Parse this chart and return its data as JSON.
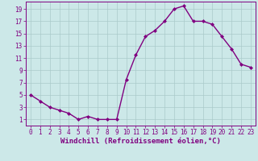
{
  "x": [
    0,
    1,
    2,
    3,
    4,
    5,
    6,
    7,
    8,
    9,
    10,
    11,
    12,
    13,
    14,
    15,
    16,
    17,
    18,
    19,
    20,
    21,
    22,
    23
  ],
  "y": [
    5,
    4,
    3,
    2.5,
    2,
    1,
    1.5,
    1,
    1,
    1,
    7.5,
    11.5,
    14.5,
    15.5,
    17,
    19,
    19.5,
    17,
    17,
    16.5,
    14.5,
    12.5,
    10,
    9.5
  ],
  "line_color": "#800080",
  "marker": "D",
  "marker_size": 2.0,
  "bg_color": "#cce8e8",
  "grid_color": "#aacaca",
  "xlabel": "Windchill (Refroidissement éolien,°C)",
  "xlim_min": -0.5,
  "xlim_max": 23.5,
  "ylim_min": 0,
  "ylim_max": 20,
  "yticks": [
    1,
    3,
    5,
    7,
    9,
    11,
    13,
    15,
    17,
    19
  ],
  "xticks": [
    0,
    1,
    2,
    3,
    4,
    5,
    6,
    7,
    8,
    9,
    10,
    11,
    12,
    13,
    14,
    15,
    16,
    17,
    18,
    19,
    20,
    21,
    22,
    23
  ],
  "linewidth": 1.0,
  "xlabel_fontsize": 6.5,
  "tick_fontsize": 5.5,
  "tick_color": "#800080",
  "axis_color": "#800080",
  "spine_color": "#800080"
}
